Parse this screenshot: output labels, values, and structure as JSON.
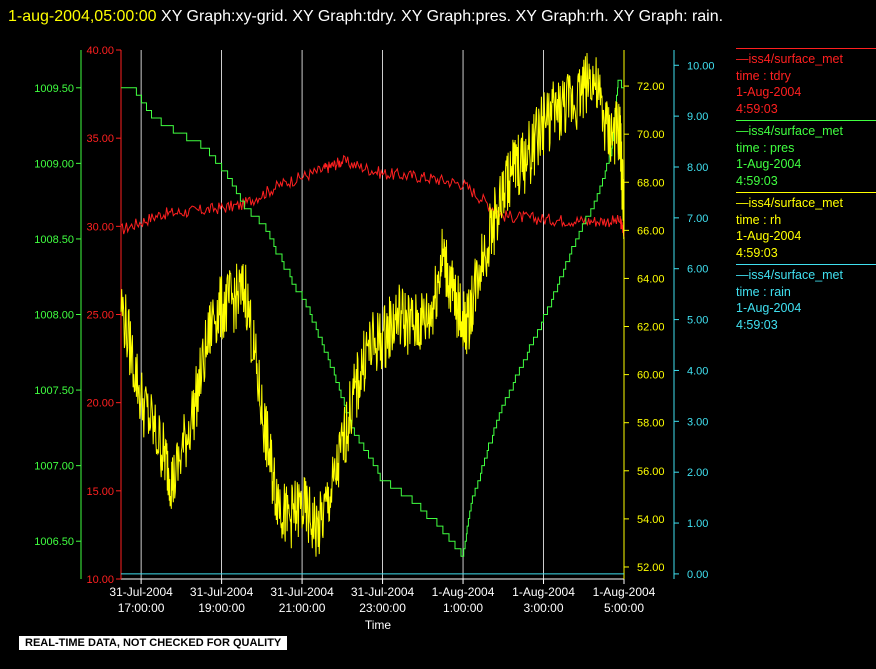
{
  "header": {
    "timestamp": "1-aug-2004,05:00:00",
    "title": "XY Graph:xy-grid.  XY Graph:tdry.  XY Graph:pres.  XY Graph:rh.  XY Graph: rain."
  },
  "footer": {
    "disclaimer": "REAL-TIME DATA, NOT CHECKED FOR QUALITY"
  },
  "colors": {
    "tdry": "#ff2020",
    "pres": "#40ff40",
    "rh": "#ffff00",
    "rain": "#40e0f0",
    "grid": "#ffffff",
    "text": "#ffffff"
  },
  "legend": [
    {
      "line": "—iss4/surface_met",
      "var": "time : tdry",
      "date": "1-Aug-2004",
      "time": "4:59:03",
      "color": "#ff2020"
    },
    {
      "line": "—iss4/surface_met",
      "var": "time : pres",
      "date": "1-Aug-2004",
      "time": "4:59:03",
      "color": "#40ff40"
    },
    {
      "line": "—iss4/surface_met",
      "var": "time : rh",
      "date": "1-Aug-2004",
      "time": "4:59:03",
      "color": "#ffff00"
    },
    {
      "line": "—iss4/surface_met",
      "var": "time : rain",
      "date": "1-Aug-2004",
      "time": "4:59:03",
      "color": "#40e0f0"
    }
  ],
  "chart_data": {
    "type": "line",
    "xlabel": "Time",
    "x_range": [
      16.5,
      29.0
    ],
    "x_ticks": [
      {
        "date": "31-Jul-2004",
        "time": "17:00:00",
        "hour": 17
      },
      {
        "date": "31-Jul-2004",
        "time": "19:00:00",
        "hour": 19
      },
      {
        "date": "31-Jul-2004",
        "time": "21:00:00",
        "hour": 21
      },
      {
        "date": "31-Jul-2004",
        "time": "23:00:00",
        "hour": 23
      },
      {
        "date": "1-Aug-2004",
        "time": "1:00:00",
        "hour": 25
      },
      {
        "date": "1-Aug-2004",
        "time": "3:00:00",
        "hour": 27
      },
      {
        "date": "1-Aug-2004",
        "time": "5:00:00",
        "hour": 29
      }
    ],
    "axes": {
      "tdry": {
        "range": [
          10,
          40
        ],
        "ticks": [
          "10.00",
          "15.00",
          "20.00",
          "25.00",
          "30.00",
          "35.00",
          "40.00"
        ]
      },
      "pres": {
        "range": [
          1006.25,
          1009.75
        ],
        "ticks": [
          "1006.50",
          "1007.00",
          "1007.50",
          "1008.00",
          "1008.50",
          "1009.00",
          "1009.50"
        ]
      },
      "rh": {
        "range": [
          51.5,
          73.5
        ],
        "ticks": [
          "52.00",
          "54.00",
          "56.00",
          "58.00",
          "60.00",
          "62.00",
          "64.00",
          "66.00",
          "68.00",
          "70.00",
          "72.00"
        ]
      },
      "rain": {
        "range": [
          -0.1,
          10.3
        ],
        "ticks": [
          "0.00",
          "1.00",
          "2.00",
          "3.00",
          "4.00",
          "5.00",
          "6.00",
          "7.00",
          "8.00",
          "9.00",
          "10.00"
        ]
      }
    },
    "series": [
      {
        "name": "tdry",
        "x": [
          16.5,
          17.5,
          18.5,
          19.5,
          20.5,
          21.5,
          22.0,
          23.0,
          24.0,
          25.0,
          26.0,
          27.0,
          28.0,
          28.9,
          29.0
        ],
        "values": [
          29.8,
          30.7,
          30.9,
          31.2,
          32.4,
          33.2,
          33.7,
          33.0,
          32.8,
          32.4,
          30.6,
          30.4,
          30.3,
          30.3,
          29.7
        ]
      },
      {
        "name": "pres",
        "x": [
          16.5,
          16.8,
          17.3,
          17.9,
          18.6,
          19.2,
          19.6,
          20.0,
          20.6,
          21.2,
          21.8,
          22.3,
          23.0,
          23.8,
          24.4,
          25.0,
          25.2,
          25.6,
          26.0,
          26.6,
          27.2,
          27.8,
          28.3,
          28.7,
          28.85,
          29.0
        ],
        "values": [
          1009.5,
          1009.5,
          1009.3,
          1009.2,
          1009.1,
          1008.9,
          1008.7,
          1008.6,
          1008.3,
          1008.0,
          1007.6,
          1007.2,
          1006.9,
          1006.75,
          1006.6,
          1006.4,
          1006.75,
          1007.1,
          1007.4,
          1007.75,
          1008.1,
          1008.5,
          1008.75,
          1009.1,
          1009.55,
          1009.5
        ]
      },
      {
        "name": "rh",
        "x": [
          16.5,
          17.0,
          17.5,
          17.8,
          18.3,
          18.8,
          19.2,
          19.6,
          20.0,
          20.3,
          20.6,
          21.0,
          21.4,
          21.8,
          22.2,
          22.6,
          23.0,
          23.4,
          23.8,
          24.2,
          24.5,
          24.8,
          25.1,
          25.4,
          25.8,
          26.2,
          26.6,
          27.0,
          27.4,
          27.8,
          28.2,
          28.6,
          28.9,
          29.0
        ],
        "values": [
          63.0,
          59.0,
          57.0,
          55.5,
          58.5,
          62.5,
          63.0,
          63.5,
          58.5,
          55.5,
          54.0,
          54.5,
          53.5,
          55.5,
          58.5,
          61.0,
          61.5,
          62.5,
          62.0,
          62.5,
          65.0,
          63.0,
          62.0,
          64.5,
          66.5,
          68.5,
          69.0,
          70.5,
          71.0,
          71.5,
          72.5,
          70.0,
          70.0,
          66.5
        ]
      },
      {
        "name": "rain",
        "x": [
          16.5,
          29.0
        ],
        "values": [
          0.0,
          0.0
        ]
      }
    ]
  }
}
